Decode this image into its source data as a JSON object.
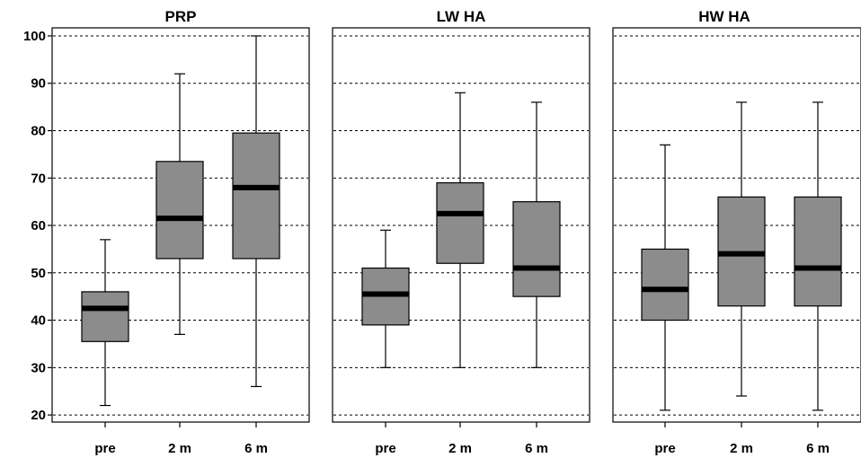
{
  "chart_data": {
    "type": "boxplot",
    "ylim": [
      18.5,
      101.7
    ],
    "yticks": [
      20,
      30,
      40,
      50,
      60,
      70,
      80,
      90,
      100
    ],
    "grid": true,
    "box_color": "#8c8c8c",
    "panels": [
      {
        "title": "PRP",
        "categories": [
          "pre",
          "2 m",
          "6 m"
        ],
        "boxes": [
          {
            "min": 22,
            "q1": 35.5,
            "median": 42.5,
            "q3": 46,
            "max": 57
          },
          {
            "min": 37,
            "q1": 53,
            "median": 61.5,
            "q3": 73.5,
            "max": 92
          },
          {
            "min": 26,
            "q1": 53,
            "median": 68,
            "q3": 79.5,
            "max": 100
          }
        ]
      },
      {
        "title": "LW HA",
        "categories": [
          "pre",
          "2 m",
          "6 m"
        ],
        "boxes": [
          {
            "min": 30,
            "q1": 39,
            "median": 45.5,
            "q3": 51,
            "max": 59
          },
          {
            "min": 30,
            "q1": 52,
            "median": 62.5,
            "q3": 69,
            "max": 88
          },
          {
            "min": 30,
            "q1": 45,
            "median": 51,
            "q3": 65,
            "max": 86
          }
        ]
      },
      {
        "title": "HW HA",
        "categories": [
          "pre",
          "2 m",
          "6 m"
        ],
        "boxes": [
          {
            "min": 21,
            "q1": 40,
            "median": 46.5,
            "q3": 55,
            "max": 77
          },
          {
            "min": 24,
            "q1": 43,
            "median": 54,
            "q3": 66,
            "max": 86
          },
          {
            "min": 21,
            "q1": 43,
            "median": 51,
            "q3": 66,
            "max": 86
          }
        ]
      }
    ]
  }
}
